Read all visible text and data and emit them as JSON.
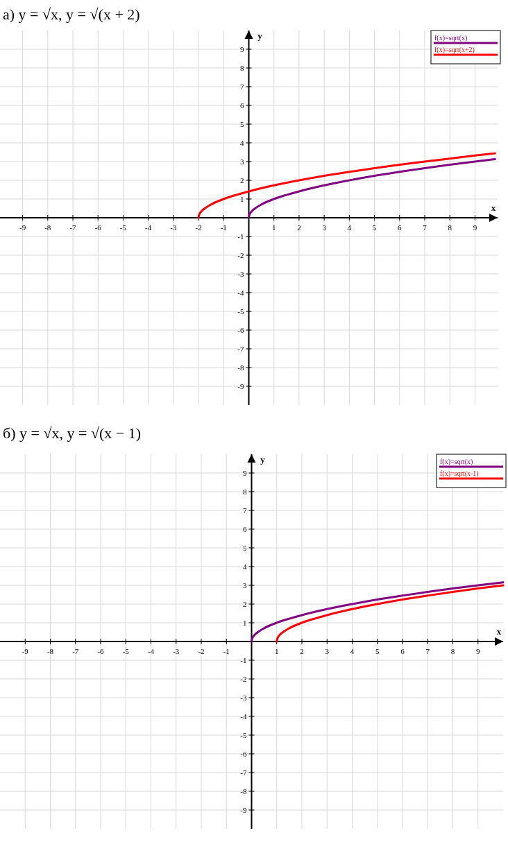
{
  "chart_data": [
    {
      "type": "line",
      "title": "а) y = √x,      y = √(x + 2)",
      "xlabel": "x",
      "ylabel": "y",
      "xlim": [
        -9.9,
        9.9
      ],
      "ylim": [
        -10,
        10
      ],
      "xticks": [
        -9,
        -8,
        -7,
        -6,
        -5,
        -4,
        -3,
        -2,
        -1,
        1,
        2,
        3,
        4,
        5,
        6,
        7,
        8,
        9
      ],
      "yticks": [
        -9,
        -8,
        -7,
        -6,
        -5,
        -4,
        -3,
        -2,
        -1,
        1,
        2,
        3,
        4,
        5,
        6,
        7,
        8,
        9
      ],
      "grid": true,
      "legend": "top right",
      "marker": "none",
      "line_style": "solid",
      "series": [
        {
          "name": "f(x)=sqrt(x)",
          "color": "#800080",
          "x": [
            0,
            0.02,
            0.1,
            0.25,
            0.5,
            1,
            1.5,
            2,
            3,
            4,
            5,
            6,
            7,
            8,
            9,
            9.8
          ],
          "values": [
            0,
            0.14,
            0.32,
            0.5,
            0.71,
            1,
            1.22,
            1.41,
            1.73,
            2,
            2.24,
            2.45,
            2.65,
            2.83,
            3,
            3.13
          ]
        },
        {
          "name": "f(x)=sqrt(x+2)",
          "color": "#ff0000",
          "x": [
            -2,
            -1.98,
            -1.9,
            -1.75,
            -1.5,
            -1,
            -0.5,
            0,
            1,
            2,
            3,
            4,
            5,
            6,
            7,
            8,
            9,
            9.8
          ],
          "values": [
            0,
            0.14,
            0.32,
            0.5,
            0.71,
            1,
            1.22,
            1.41,
            1.73,
            2,
            2.24,
            2.45,
            2.65,
            2.83,
            3,
            3.16,
            3.32,
            3.44
          ]
        }
      ]
    },
    {
      "type": "line",
      "title": "б) y = √x,      y = √(x − 1)",
      "xlabel": "x",
      "ylabel": "y",
      "xlim": [
        -10,
        10
      ],
      "ylim": [
        -10,
        10
      ],
      "xticks": [
        -9,
        -8,
        -7,
        -6,
        -5,
        -4,
        -3,
        -2,
        -1,
        1,
        2,
        3,
        4,
        5,
        6,
        7,
        8,
        9
      ],
      "yticks": [
        -9,
        -8,
        -7,
        -6,
        -5,
        -4,
        -3,
        -2,
        -1,
        1,
        2,
        3,
        4,
        5,
        6,
        7,
        8,
        9
      ],
      "grid": true,
      "legend": "top right",
      "marker": "none",
      "line_style": "solid",
      "series": [
        {
          "name": "f(x)=sqrt(x)",
          "color": "#800080",
          "x": [
            0,
            0.02,
            0.1,
            0.25,
            0.5,
            1,
            1.5,
            2,
            3,
            4,
            5,
            6,
            7,
            8,
            9,
            10
          ],
          "values": [
            0,
            0.14,
            0.32,
            0.5,
            0.71,
            1,
            1.22,
            1.41,
            1.73,
            2,
            2.24,
            2.45,
            2.65,
            2.83,
            3,
            3.16
          ]
        },
        {
          "name": "f(x)=sqrt(x-1)",
          "color": "#ff0000",
          "x": [
            1,
            1.02,
            1.1,
            1.25,
            1.5,
            2,
            2.5,
            3,
            4,
            5,
            6,
            7,
            8,
            9,
            10
          ],
          "values": [
            0,
            0.14,
            0.32,
            0.5,
            0.71,
            1,
            1.22,
            1.41,
            1.73,
            2,
            2.24,
            2.45,
            2.65,
            2.83,
            3
          ]
        }
      ]
    }
  ]
}
